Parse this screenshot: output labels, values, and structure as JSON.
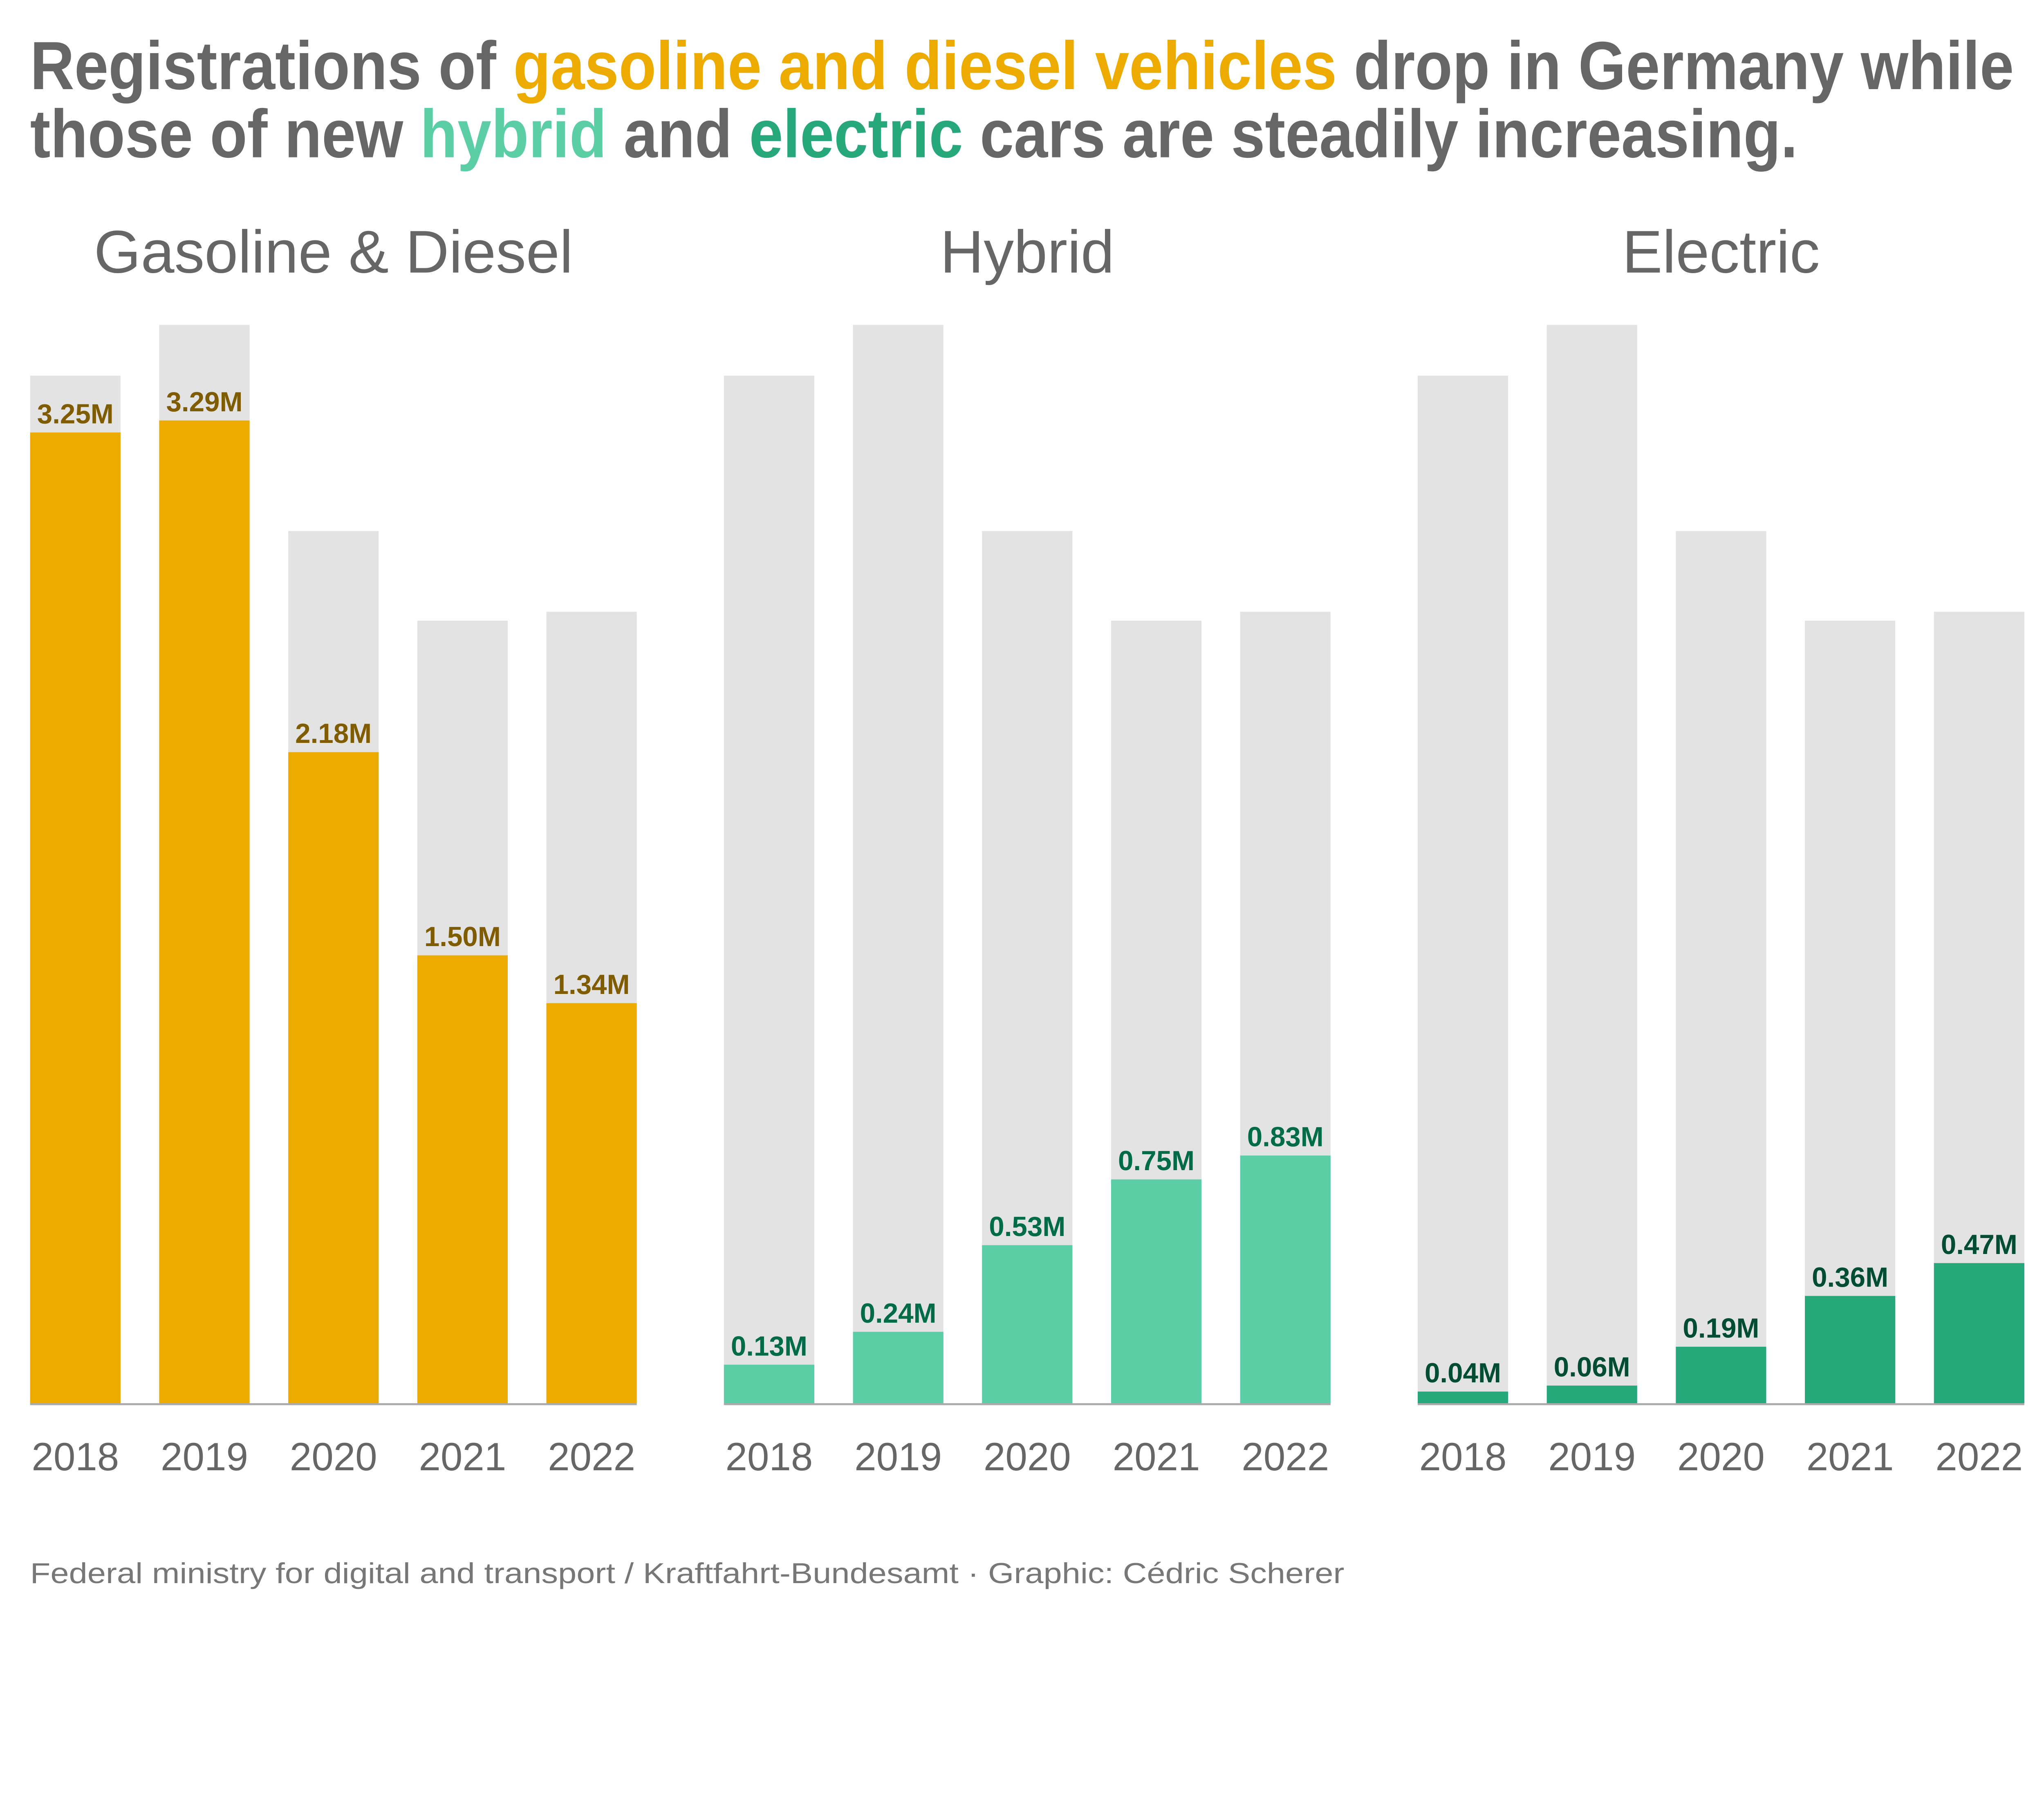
{
  "title": {
    "line1": [
      {
        "text": "Registrations of ",
        "color": "#666666"
      },
      {
        "text": "gasoline and diesel vehicles",
        "color": "#EDAB00"
      },
      {
        "text": " drop in Germany while",
        "color": "#666666"
      }
    ],
    "line2": [
      {
        "text": "those of new ",
        "color": "#666666"
      },
      {
        "text": "hybrid",
        "color": "#5CCEA6"
      },
      {
        "text": " and ",
        "color": "#666666"
      },
      {
        "text": "electric",
        "color": "#27A87B"
      },
      {
        "text": " cars are steadily increasing.",
        "color": "#666666"
      }
    ]
  },
  "caption": "Federal ministry for digital and transport / Kraftfahrt-Bundesamt · Graphic: Cédric Scherer",
  "chart_data": [
    {
      "type": "bar",
      "title": "Gasoline & Diesel",
      "categories": [
        "2018",
        "2019",
        "2020",
        "2021",
        "2022"
      ],
      "values": [
        3.25,
        3.29,
        2.18,
        1.5,
        1.34
      ],
      "labels": [
        "3.25M",
        "3.29M",
        "2.18M",
        "1.50M",
        "1.34M"
      ],
      "total_values": [
        3.44,
        3.61,
        2.92,
        2.62,
        2.65
      ],
      "unit": "M",
      "color": "#EDAB00",
      "label_color": "#7F5C00",
      "background_color": "#E3E3E3",
      "grid": false
    },
    {
      "type": "bar",
      "title": "Hybrid",
      "categories": [
        "2018",
        "2019",
        "2020",
        "2021",
        "2022"
      ],
      "values": [
        0.13,
        0.24,
        0.53,
        0.75,
        0.83
      ],
      "labels": [
        "0.13M",
        "0.24M",
        "0.53M",
        "0.75M",
        "0.83M"
      ],
      "total_values": [
        3.44,
        3.61,
        2.92,
        2.62,
        2.65
      ],
      "unit": "M",
      "color": "#5CCEA6",
      "label_color": "#006B49",
      "background_color": "#E3E3E3",
      "grid": false
    },
    {
      "type": "bar",
      "title": "Electric",
      "categories": [
        "2018",
        "2019",
        "2020",
        "2021",
        "2022"
      ],
      "values": [
        0.04,
        0.06,
        0.19,
        0.36,
        0.47
      ],
      "labels": [
        "0.04M",
        "0.06M",
        "0.19M",
        "0.36M",
        "0.47M"
      ],
      "total_values": [
        3.44,
        3.61,
        2.92,
        2.62,
        2.65
      ],
      "unit": "M",
      "color": "#27A87B",
      "label_color": "#004D33",
      "background_color": "#E3E3E3",
      "grid": false
    }
  ]
}
